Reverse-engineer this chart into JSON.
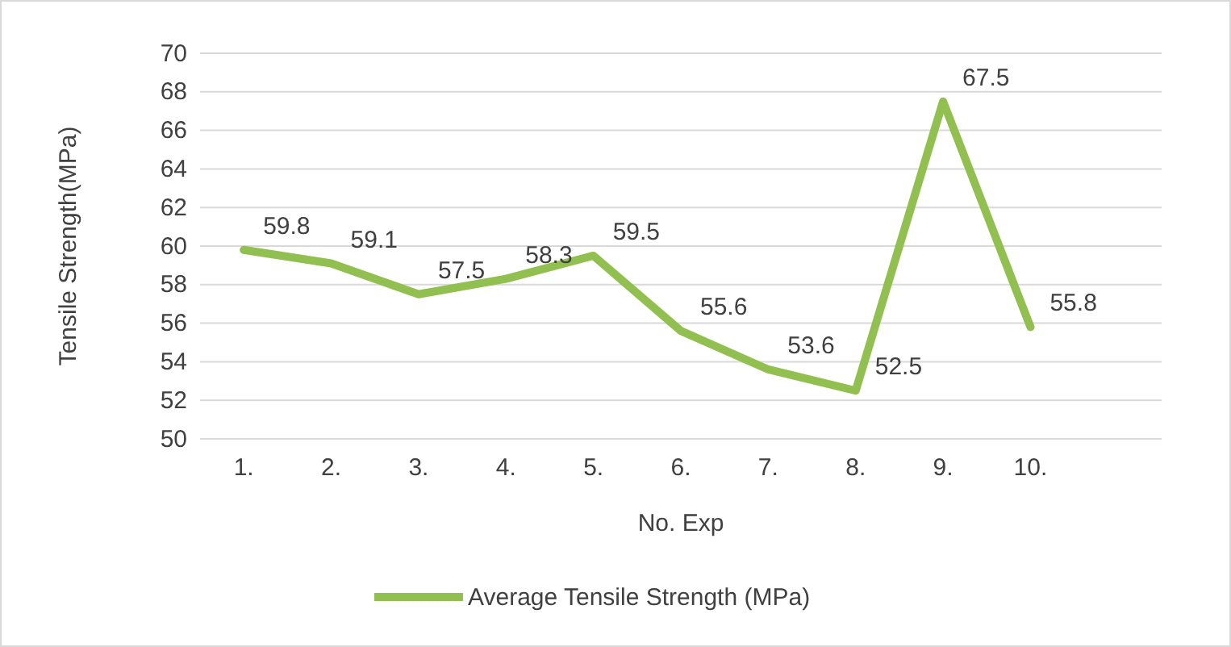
{
  "chart_data": {
    "type": "line",
    "xlabel": "No. Exp",
    "ylabel": "Tensile Strength(MPa)",
    "categories": [
      "1.",
      "2.",
      "3.",
      "4.",
      "5.",
      "6.",
      "7.",
      "8.",
      "9.",
      "10.",
      null
    ],
    "series": [
      {
        "name": "Average  Tensile Strength (MPa)",
        "color": "#92c050",
        "values": [
          59.8,
          59.1,
          57.5,
          58.3,
          59.5,
          55.6,
          53.6,
          52.5,
          67.5,
          55.8,
          null
        ]
      }
    ],
    "ylim": [
      50,
      70
    ],
    "yticks": [
      50,
      52,
      54,
      56,
      58,
      60,
      62,
      64,
      66,
      68,
      70
    ],
    "grid": "y",
    "legend": "bottom",
    "data_labels": true,
    "marker": "none",
    "line_style": "solid"
  }
}
